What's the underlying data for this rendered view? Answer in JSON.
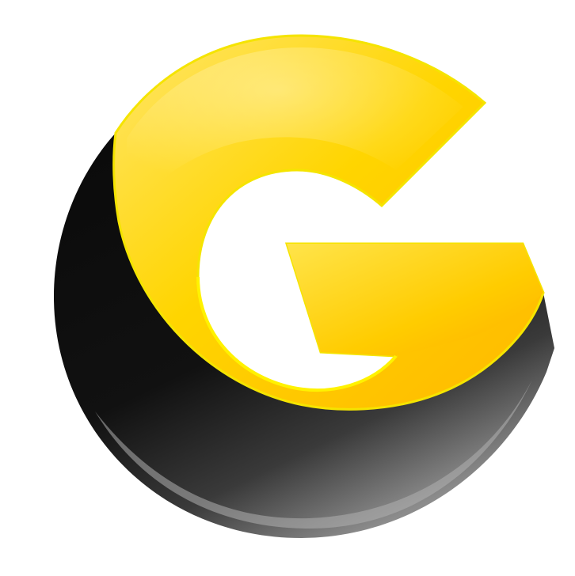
{
  "logo": {
    "letter": "G",
    "description_name": "g-logo",
    "colors": {
      "yellow_light": "#fff1a0",
      "yellow": "#ffd800",
      "yellow_deep": "#ffb400",
      "yellow_edge": "#f5e400",
      "black": "#0a0a0a",
      "black_mid": "#2a2a2a",
      "gray_highlight": "#8a8a8a",
      "background": "#ffffff"
    }
  }
}
